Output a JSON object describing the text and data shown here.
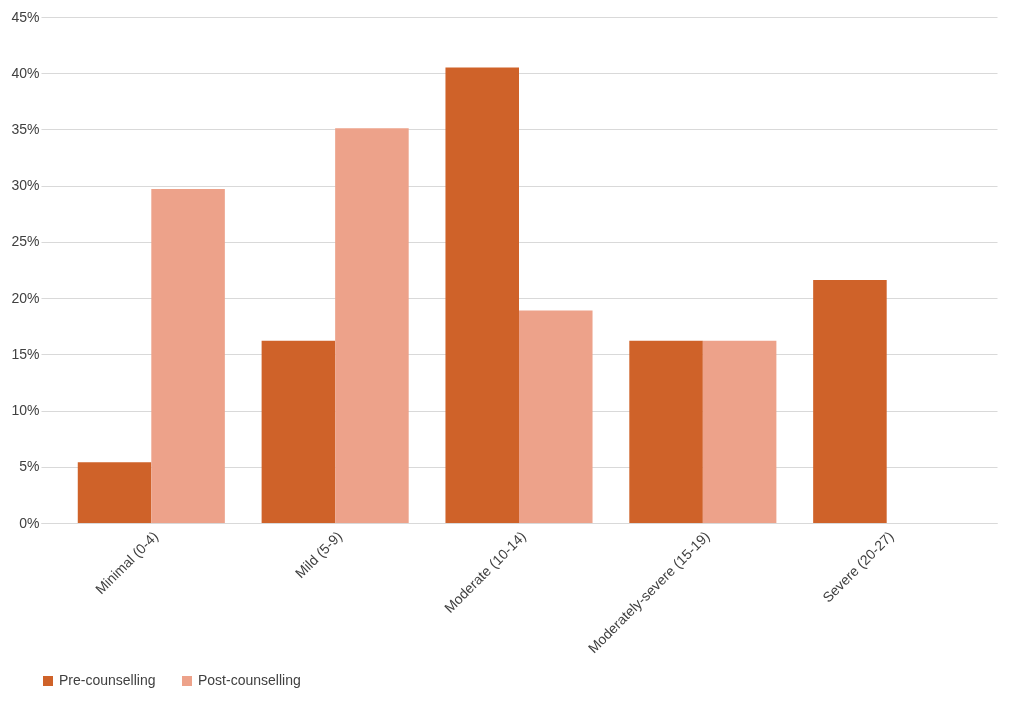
{
  "chart_data": {
    "type": "bar",
    "categories": [
      "Minimal (0-4)",
      "Mild (5-9)",
      "Moderate (10-14)",
      "Moderately-severe (15-19)",
      "Severe (20-27)"
    ],
    "series": [
      {
        "name": "Pre-counselling",
        "color": "#cf6229",
        "values": [
          5.4,
          16.2,
          40.5,
          16.2,
          21.6
        ]
      },
      {
        "name": "Post-counselling",
        "color": "#eda28a",
        "values": [
          29.7,
          35.1,
          18.9,
          16.2,
          0
        ]
      }
    ],
    "ylim": [
      0,
      45
    ],
    "yticks": [
      {
        "value": 0,
        "label": "0%"
      },
      {
        "value": 5,
        "label": "5%"
      },
      {
        "value": 10,
        "label": "10%"
      },
      {
        "value": 15,
        "label": "15%"
      },
      {
        "value": 20,
        "label": "20%"
      },
      {
        "value": 25,
        "label": "25%"
      },
      {
        "value": 30,
        "label": "30%"
      },
      {
        "value": 35,
        "label": "35%"
      },
      {
        "value": 40,
        "label": "40%"
      },
      {
        "value": 45,
        "label": "45%"
      }
    ],
    "grid": "y",
    "legend": "bottom"
  }
}
